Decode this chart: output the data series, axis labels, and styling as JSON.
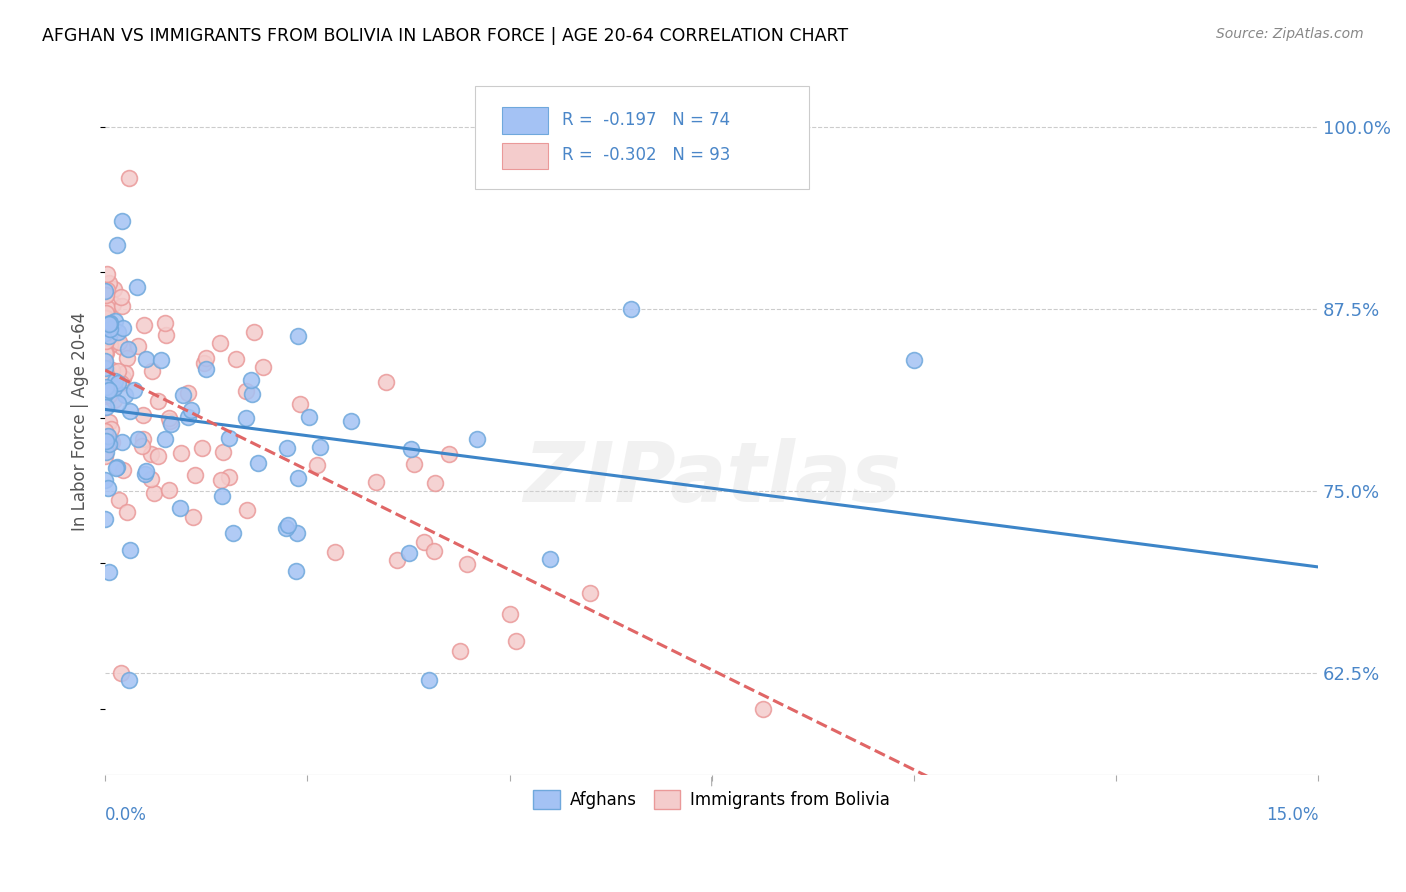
{
  "title": "AFGHAN VS IMMIGRANTS FROM BOLIVIA IN LABOR FORCE | AGE 20-64 CORRELATION CHART",
  "source": "Source: ZipAtlas.com",
  "ylabel": "In Labor Force | Age 20-64",
  "yticks": [
    62.5,
    75.0,
    87.5,
    100.0
  ],
  "xlim": [
    0.0,
    0.15
  ],
  "ylim": [
    0.555,
    1.04
  ],
  "afghan_color": "#6fa8dc",
  "afghan_color_fill": "#a4c2f4",
  "bolivia_color": "#ea9999",
  "bolivia_color_fill": "#f4cccc",
  "line_afghan_color": "#3d85c8",
  "line_bolivia_color": "#e06666",
  "legend_R_afghan": "R =  -0.197",
  "legend_N_afghan": "N = 74",
  "legend_R_bolivia": "R =  -0.302",
  "legend_N_bolivia": "N = 93",
  "watermark": "ZIPatlas",
  "background_color": "#ffffff",
  "grid_color": "#cccccc",
  "title_color": "#000000",
  "axis_label_color": "#4a86c8"
}
